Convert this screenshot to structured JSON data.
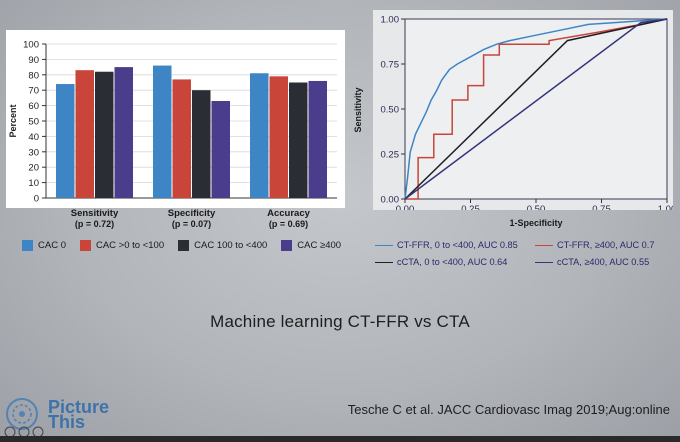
{
  "slide": {
    "title": "Machine learning CT-FFR vs CTA",
    "citation": "Tesche C et al. JACC Cardiovasc Imag 2019;Aug:online",
    "logo_text_1": "Picture",
    "logo_text_2": "This"
  },
  "colors": {
    "cac0": "#3e85c6",
    "cac_0_100": "#c9453a",
    "cac_100_400": "#2b2d34",
    "cac_400": "#4a3d8c",
    "ctffr_0_400": "#3e85c6",
    "ctffr_400": "#c9453a",
    "ccta_0_400": "#1e1e26",
    "ccta_400": "#35357a"
  },
  "chart_data": [
    {
      "type": "bar",
      "ylabel": "Percent",
      "ylim": [
        0,
        100
      ],
      "yticks": [
        "0",
        "10",
        "20",
        "30",
        "40",
        "50",
        "60",
        "70",
        "80",
        "90",
        "100"
      ],
      "categories": [
        "Sensitivity",
        "Specificity",
        "Accuracy"
      ],
      "category_pvalues": [
        "(p = 0.72)",
        "(p = 0.07)",
        "(p = 0.69)"
      ],
      "grid": true,
      "series": [
        {
          "name": "CAC 0",
          "values": [
            74,
            86,
            81
          ]
        },
        {
          "name": "CAC >0 to <100",
          "values": [
            83,
            77,
            79
          ]
        },
        {
          "name": "CAC 100 to <400",
          "values": [
            82,
            70,
            75
          ]
        },
        {
          "name": "CAC ≥400",
          "values": [
            85,
            63,
            76
          ]
        }
      ]
    },
    {
      "type": "line",
      "xlabel": "1-Specificity",
      "ylabel": "Sensitivity",
      "xlim": [
        0,
        1
      ],
      "ylim": [
        0,
        1
      ],
      "xticks": [
        "0.00",
        "0.25",
        "0.50",
        "0.75",
        "1.00"
      ],
      "yticks": [
        "0.00",
        "0.25",
        "0.50",
        "0.75",
        "1.00"
      ],
      "series": [
        {
          "name": "CT-FFR, 0 to <400, AUC 0.85",
          "x": [
            0,
            0.01,
            0.02,
            0.04,
            0.06,
            0.08,
            0.1,
            0.12,
            0.14,
            0.17,
            0.2,
            0.25,
            0.3,
            0.35,
            0.4,
            0.5,
            0.6,
            0.7,
            0.8,
            0.9,
            1
          ],
          "y": [
            0,
            0.12,
            0.26,
            0.36,
            0.42,
            0.48,
            0.55,
            0.6,
            0.66,
            0.72,
            0.75,
            0.79,
            0.83,
            0.86,
            0.88,
            0.91,
            0.94,
            0.97,
            0.98,
            0.99,
            1
          ]
        },
        {
          "name": "CT-FFR, ≥400, AUC 0.7",
          "x": [
            0,
            0.05,
            0.05,
            0.11,
            0.11,
            0.18,
            0.18,
            0.24,
            0.24,
            0.3,
            0.3,
            0.36,
            0.36,
            0.55,
            0.55,
            0.75,
            0.9,
            1
          ],
          "y": [
            0,
            0,
            0.23,
            0.23,
            0.36,
            0.36,
            0.55,
            0.55,
            0.63,
            0.63,
            0.8,
            0.8,
            0.86,
            0.86,
            0.88,
            0.93,
            0.97,
            1
          ]
        },
        {
          "name": "cCTA, 0 to <400, AUC 0.64",
          "x": [
            0,
            0.62,
            1
          ],
          "y": [
            0,
            0.88,
            1
          ]
        },
        {
          "name": "cCTA, ≥400, AUC 0.55",
          "x": [
            0,
            0.9,
            1
          ],
          "y": [
            0,
            0.98,
            1
          ]
        }
      ]
    }
  ]
}
